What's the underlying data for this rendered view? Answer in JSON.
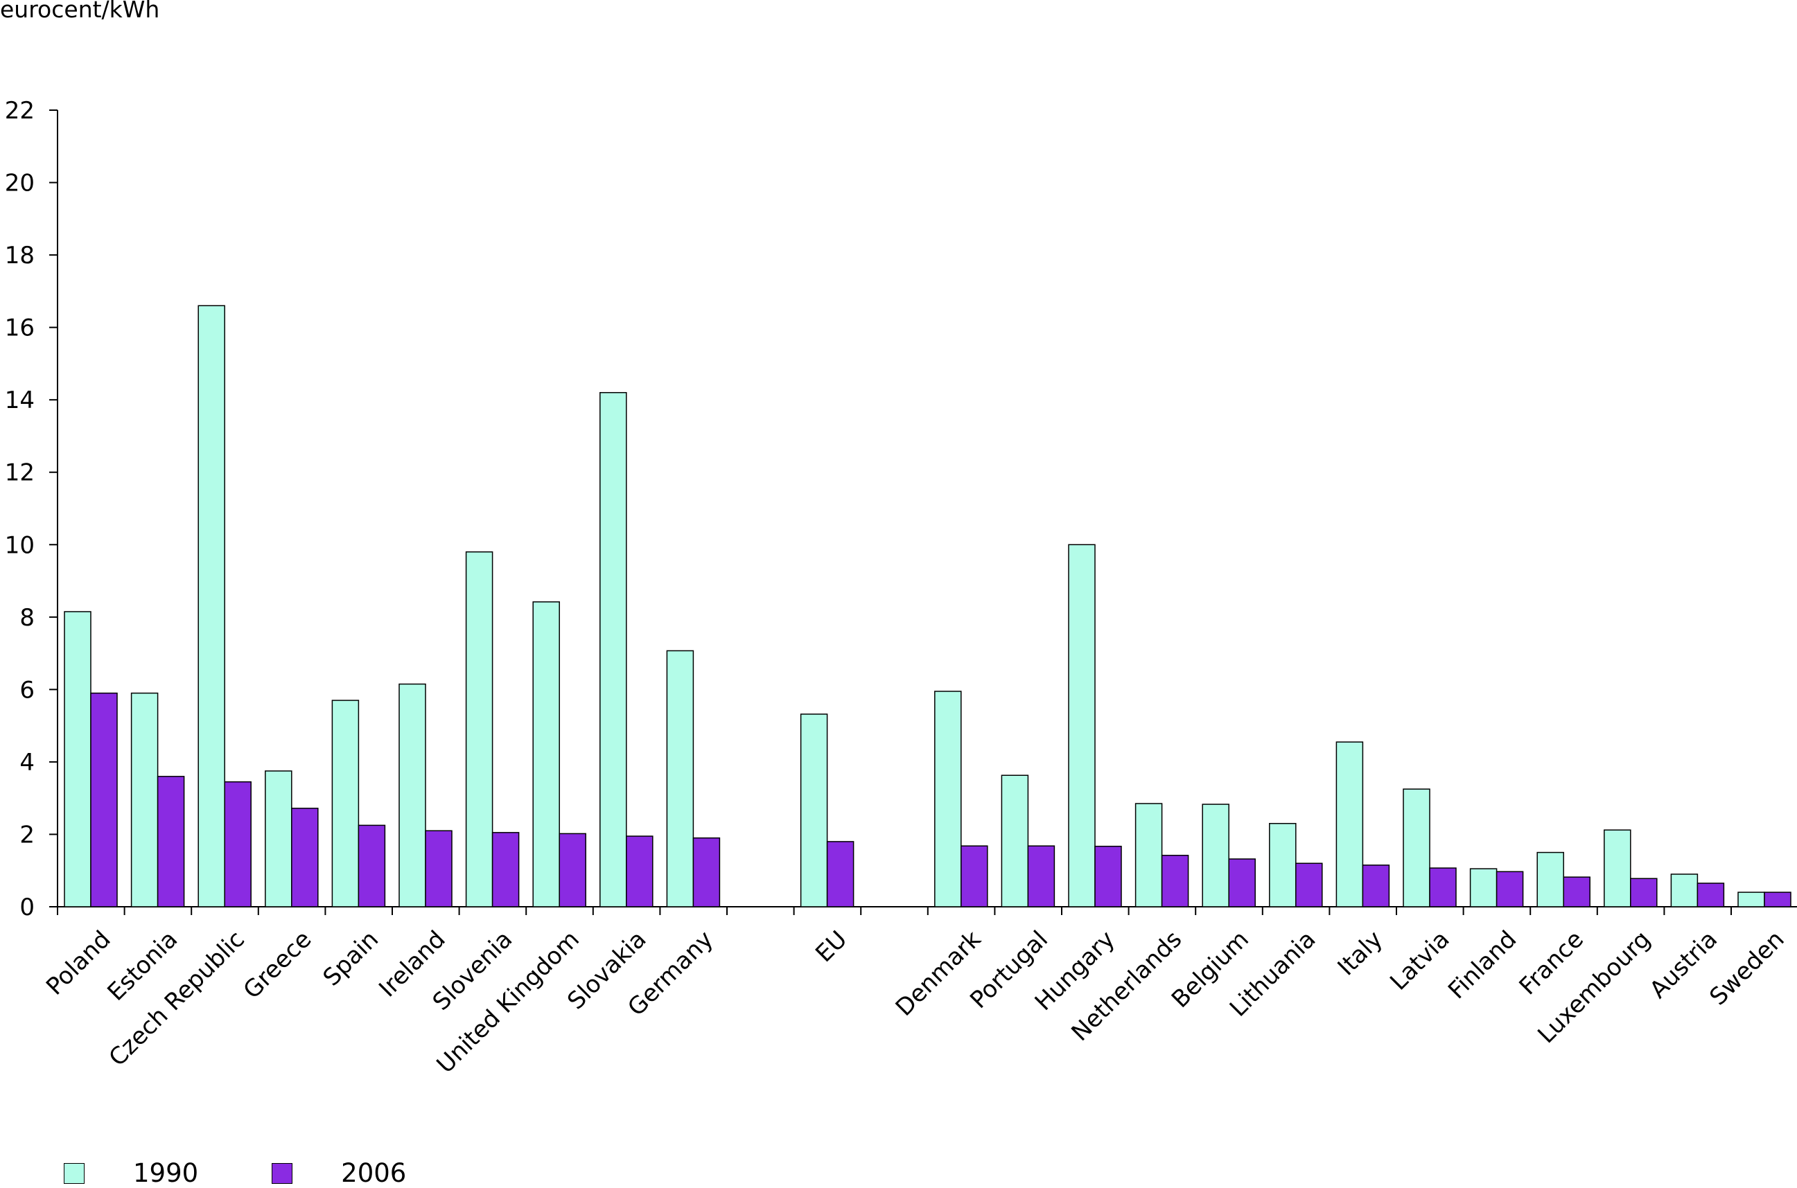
{
  "chart_data": {
    "type": "bar",
    "ylabel": "eurocent/kWh",
    "ylim": [
      0,
      22
    ],
    "yticks": [
      0,
      2,
      4,
      6,
      8,
      10,
      12,
      14,
      16,
      18,
      20,
      22
    ],
    "categories": [
      "Poland",
      "Estonia",
      "Czech Republic",
      "Greece",
      "Spain",
      "Ireland",
      "Slovenia",
      "United Kingdom",
      "Slovakia",
      "Germany",
      "",
      "EU",
      "",
      "Denmark",
      "Portugal",
      "Hungary",
      "Netherlands",
      "Belgium",
      "Lithuania",
      "Italy",
      "Latvia",
      "Finland",
      "France",
      "Luxembourg",
      "Austria",
      "Sweden"
    ],
    "series": [
      {
        "name": "1990",
        "color": "#b3fce8",
        "values": [
          8.15,
          5.9,
          16.6,
          3.75,
          5.7,
          6.15,
          9.8,
          8.42,
          14.2,
          7.07,
          null,
          5.32,
          null,
          5.95,
          3.63,
          10.0,
          2.85,
          2.83,
          2.3,
          4.55,
          3.25,
          1.05,
          1.5,
          2.12,
          0.9,
          0.4
        ]
      },
      {
        "name": "2006",
        "color": "#8a2be2",
        "values": [
          5.9,
          3.6,
          3.45,
          2.72,
          2.25,
          2.1,
          2.05,
          2.02,
          1.95,
          1.9,
          null,
          1.8,
          null,
          1.68,
          1.68,
          1.67,
          1.42,
          1.32,
          1.2,
          1.15,
          1.07,
          0.97,
          0.82,
          0.78,
          0.65,
          0.4
        ]
      }
    ],
    "grid": false,
    "legend_position": "bottom-left"
  }
}
